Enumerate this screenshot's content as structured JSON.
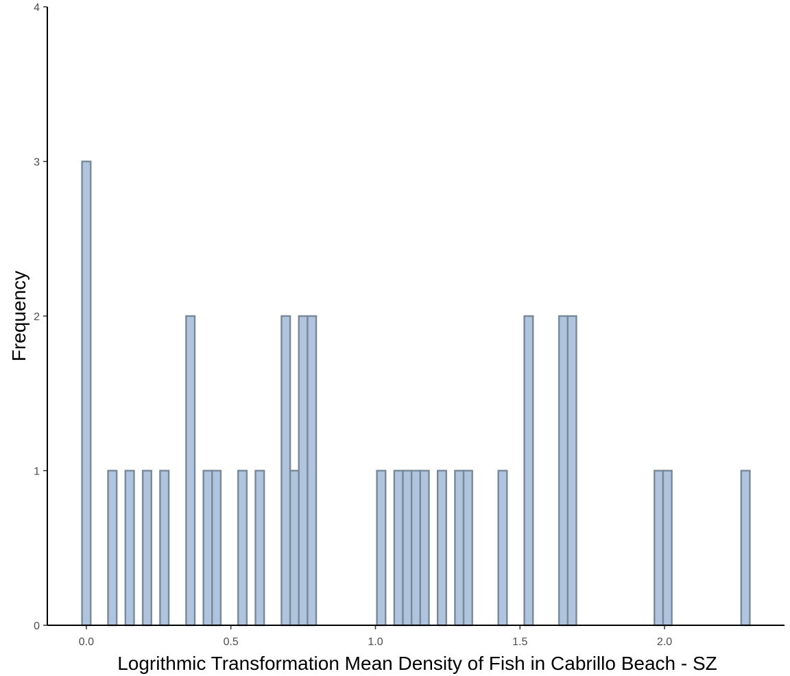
{
  "chart_data": {
    "type": "bar",
    "title": "",
    "xlabel": "Logrithmic Transformation Mean Density of Fish in Cabrillo Beach - SZ",
    "ylabel": "Frequency",
    "xlim": [
      -0.135,
      2.415
    ],
    "ylim": [
      0,
      4
    ],
    "bin_width": 0.03,
    "x_ticks": [
      {
        "value": 0.0,
        "label": "0.0"
      },
      {
        "value": 0.5,
        "label": "0.5"
      },
      {
        "value": 1.0,
        "label": "1.0"
      },
      {
        "value": 1.5,
        "label": "1.5"
      },
      {
        "value": 2.0,
        "label": "2.0"
      }
    ],
    "y_ticks": [
      {
        "value": 0,
        "label": "0"
      },
      {
        "value": 1,
        "label": "1"
      },
      {
        "value": 2,
        "label": "2"
      },
      {
        "value": 3,
        "label": "3"
      },
      {
        "value": 4,
        "label": "4"
      }
    ],
    "grid": false,
    "bins": [
      {
        "x": 0.0,
        "count": 3
      },
      {
        "x": 0.09,
        "count": 1
      },
      {
        "x": 0.15,
        "count": 1
      },
      {
        "x": 0.21,
        "count": 1
      },
      {
        "x": 0.27,
        "count": 1
      },
      {
        "x": 0.36,
        "count": 2
      },
      {
        "x": 0.42,
        "count": 1
      },
      {
        "x": 0.45,
        "count": 1
      },
      {
        "x": 0.54,
        "count": 1
      },
      {
        "x": 0.6,
        "count": 1
      },
      {
        "x": 0.69,
        "count": 2
      },
      {
        "x": 0.72,
        "count": 1
      },
      {
        "x": 0.75,
        "count": 2
      },
      {
        "x": 0.78,
        "count": 2
      },
      {
        "x": 1.02,
        "count": 1
      },
      {
        "x": 1.08,
        "count": 1
      },
      {
        "x": 1.11,
        "count": 1
      },
      {
        "x": 1.14,
        "count": 1
      },
      {
        "x": 1.17,
        "count": 1
      },
      {
        "x": 1.23,
        "count": 1
      },
      {
        "x": 1.29,
        "count": 1
      },
      {
        "x": 1.32,
        "count": 1
      },
      {
        "x": 1.44,
        "count": 1
      },
      {
        "x": 1.53,
        "count": 2
      },
      {
        "x": 1.65,
        "count": 2
      },
      {
        "x": 1.68,
        "count": 2
      },
      {
        "x": 1.98,
        "count": 1
      },
      {
        "x": 2.01,
        "count": 1
      },
      {
        "x": 2.28,
        "count": 1
      }
    ],
    "bar_fill": "#b0c4de",
    "bar_stroke": "#778899"
  }
}
